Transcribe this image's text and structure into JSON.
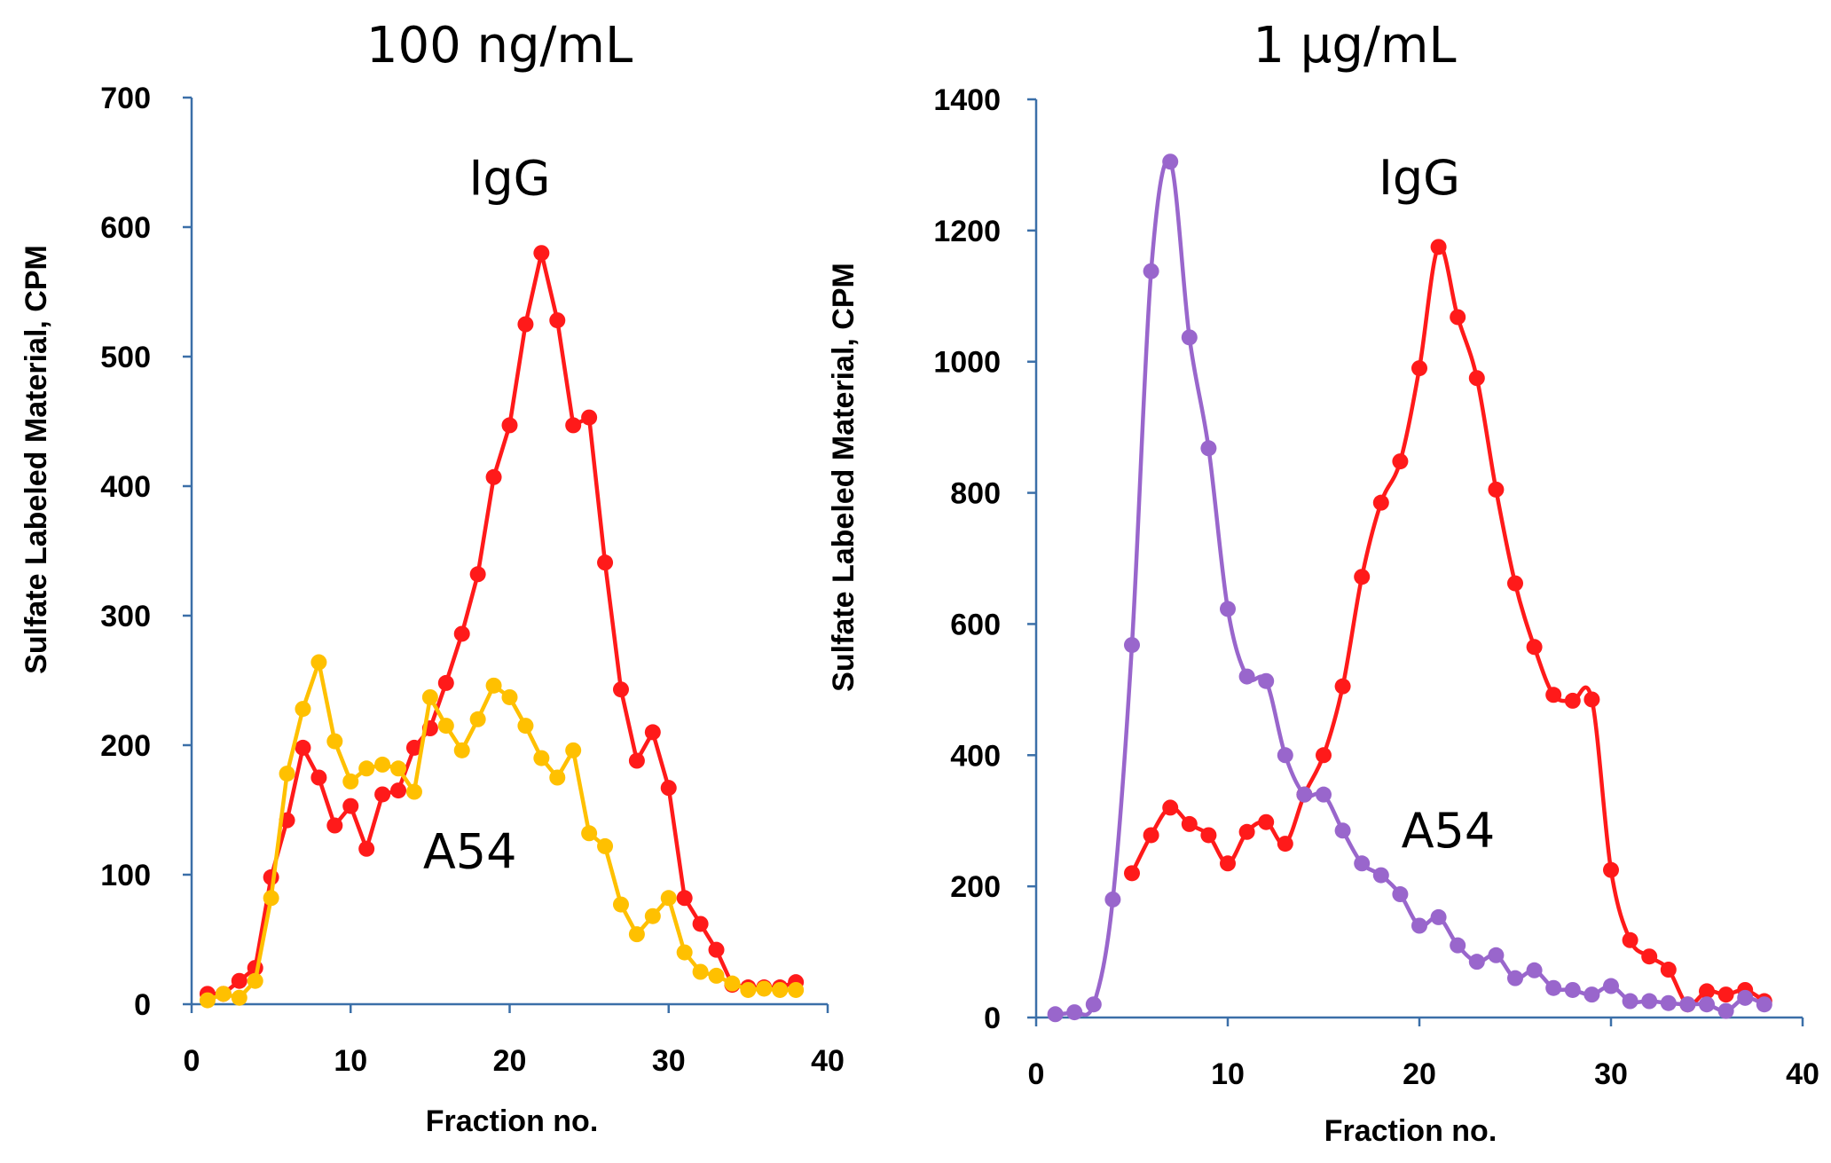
{
  "chart_data": [
    {
      "type": "line",
      "title": "100 ng/mL",
      "xlabel": "Fraction no.",
      "ylabel": "Sulfate Labeled Material, CPM",
      "xlim": [
        0,
        40
      ],
      "ylim": [
        0,
        700
      ],
      "xticks": [
        "0",
        "10",
        "20",
        "30",
        "40"
      ],
      "yticks": [
        "0",
        "100",
        "200",
        "300",
        "400",
        "500",
        "600",
        "700"
      ],
      "grid": false,
      "annotations": [
        {
          "text": "IgG",
          "x": 20,
          "y": 625
        },
        {
          "text": "A54",
          "x": 17.5,
          "y": 105
        }
      ],
      "series": [
        {
          "name": "IgG",
          "color": "#ff1a1a",
          "smooth": false,
          "x": [
            1,
            2,
            3,
            4,
            5,
            6,
            7,
            8,
            9,
            10,
            11,
            12,
            13,
            14,
            15,
            16,
            17,
            18,
            19,
            20,
            21,
            22,
            23,
            24,
            25,
            26,
            27,
            28,
            29,
            30,
            31,
            32,
            33,
            34,
            35,
            36,
            37,
            38
          ],
          "y": [
            8,
            8,
            18,
            28,
            98,
            142,
            198,
            175,
            138,
            153,
            120,
            162,
            165,
            198,
            213,
            248,
            286,
            332,
            407,
            447,
            525,
            580,
            528,
            447,
            453,
            341,
            243,
            188,
            210,
            167,
            82,
            62,
            42,
            15,
            13,
            13,
            13,
            17
          ]
        },
        {
          "name": "A54",
          "color": "#ffc000",
          "smooth": false,
          "x": [
            1,
            2,
            3,
            4,
            5,
            6,
            7,
            8,
            9,
            10,
            11,
            12,
            13,
            14,
            15,
            16,
            17,
            18,
            19,
            20,
            21,
            22,
            23,
            24,
            25,
            26,
            27,
            28,
            29,
            30,
            31,
            32,
            33,
            34,
            35,
            36,
            37,
            38
          ],
          "y": [
            3,
            8,
            5,
            18,
            82,
            178,
            228,
            264,
            203,
            172,
            182,
            185,
            182,
            164,
            237,
            215,
            196,
            220,
            246,
            237,
            215,
            190,
            175,
            196,
            132,
            122,
            77,
            54,
            68,
            82,
            40,
            25,
            22,
            16,
            11,
            12,
            11,
            11
          ]
        }
      ]
    },
    {
      "type": "line",
      "title": "1 μg/mL",
      "xlabel": "Fraction no.",
      "ylabel": "Sulfate Labeled Material, CPM",
      "xlim": [
        0,
        40
      ],
      "ylim": [
        0,
        1400
      ],
      "xticks": [
        "0",
        "10",
        "20",
        "30",
        "40"
      ],
      "yticks": [
        "0",
        "200",
        "400",
        "600",
        "800",
        "1000",
        "1200",
        "1400"
      ],
      "grid": false,
      "annotations": [
        {
          "text": "IgG",
          "x": 20,
          "y": 1255
        },
        {
          "text": "A54",
          "x": 21.5,
          "y": 260
        }
      ],
      "series": [
        {
          "name": "IgG",
          "color": "#ff1a1a",
          "smooth": true,
          "x": [
            5,
            6,
            7,
            8,
            9,
            10,
            11,
            12,
            13,
            14,
            15,
            16,
            17,
            18,
            19,
            20,
            21,
            22,
            23,
            24,
            25,
            26,
            27,
            28,
            29,
            30,
            31,
            32,
            33,
            34,
            35,
            36,
            37,
            38
          ],
          "y": [
            220,
            278,
            320,
            295,
            278,
            235,
            283,
            298,
            265,
            340,
            400,
            505,
            672,
            785,
            848,
            990,
            1175,
            1068,
            975,
            805,
            662,
            565,
            492,
            483,
            485,
            225,
            118,
            93,
            73,
            20,
            40,
            35,
            42,
            25
          ]
        },
        {
          "name": "A54",
          "color": "#9966cc",
          "smooth": true,
          "x": [
            1,
            2,
            3,
            4,
            5,
            6,
            7,
            8,
            9,
            10,
            11,
            12,
            13,
            14,
            15,
            16,
            17,
            18,
            19,
            20,
            21,
            22,
            23,
            24,
            25,
            26,
            27,
            28,
            29,
            30,
            31,
            32,
            33,
            34,
            35,
            36,
            37,
            38
          ],
          "y": [
            5,
            8,
            20,
            180,
            568,
            1138,
            1305,
            1037,
            868,
            623,
            520,
            513,
            400,
            340,
            340,
            285,
            235,
            217,
            188,
            140,
            153,
            110,
            85,
            95,
            60,
            72,
            45,
            42,
            35,
            48,
            25,
            25,
            22,
            20,
            20,
            10,
            30,
            20
          ]
        }
      ]
    }
  ]
}
